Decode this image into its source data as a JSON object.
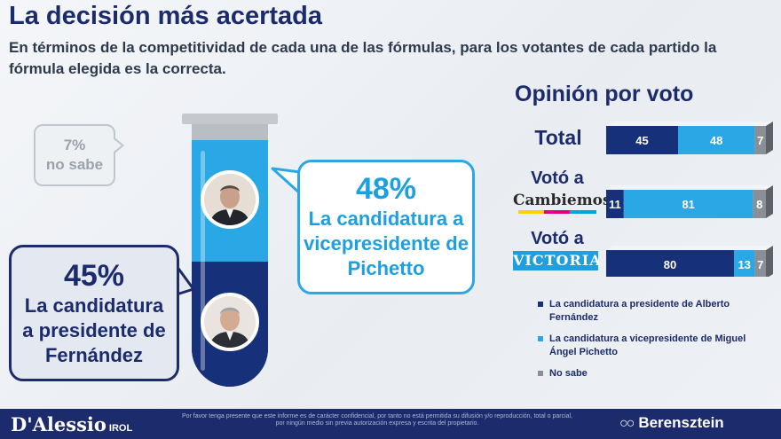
{
  "title": "La decisión más acertada",
  "subtitle": "En términos de la competitividad de cada una de las fórmulas, para los votantes de cada partido la fórmula elegida es la correcta.",
  "no_sabe_bubble": {
    "pct": "7%",
    "text": "no sabe"
  },
  "pichetto_bubble": {
    "pct": "48%",
    "line1": "La candidatura a",
    "line2": "vicepresidente de",
    "line3": "Pichetto"
  },
  "fernandez_bubble": {
    "pct": "45%",
    "line1": "La candidatura",
    "line2": "a presidente de",
    "line3": "Fernández"
  },
  "tube": {
    "top_pct": 48,
    "bottom_pct": 45,
    "top_color": "#2aa8e6",
    "bottom_color": "#16307a"
  },
  "opinion_title": "Opinión por voto",
  "row_labels": {
    "total": "Total",
    "cam_prefix": "Votó a",
    "cam_brand": "Cambiemos",
    "vic_prefix": "Votó a",
    "vic_brand": "VICTORIA"
  },
  "chart_data": {
    "type": "bar",
    "orientation": "horizontal",
    "stacked": true,
    "title": "Opinión por voto",
    "categories": [
      "Total",
      "Votó a Cambiemos",
      "Votó a Victoria"
    ],
    "series": [
      {
        "name": "La candidatura a presidente de Alberto Fernández",
        "color": "#16307a",
        "values": [
          45,
          11,
          80
        ]
      },
      {
        "name": "La candidatura a vicepresidente de Miguel Ángel Pichetto",
        "color": "#2aa8e6",
        "values": [
          48,
          81,
          13
        ]
      },
      {
        "name": "No sabe",
        "color": "#8a8f96",
        "values": [
          7,
          8,
          7
        ]
      }
    ],
    "value_labels": [
      [
        "45",
        "48",
        "7"
      ],
      [
        "11",
        "81",
        "8"
      ],
      [
        "80",
        "13",
        "7"
      ]
    ],
    "xlim": [
      0,
      100
    ],
    "legend_position": "bottom"
  },
  "legend": [
    {
      "label": "La candidatura a presidente de Alberto Fernández",
      "color": "#16307a"
    },
    {
      "label": "La candidatura a vicepresidente de Miguel Ángel Pichetto",
      "color": "#2aa8e6"
    },
    {
      "label": "No sabe",
      "color": "#8a8f96"
    }
  ],
  "footer": {
    "left_logo": "D'Alessio",
    "left_logo_sub": "IROL",
    "note": "Por favor tenga presente que este informe es de carácter confidencial, por tanto no está permitida su difusión y/o reproducción, total o parcial, por ningún medio sin previa autorización expresa y escrita del propietario.",
    "right_logo": "Berensztein"
  }
}
